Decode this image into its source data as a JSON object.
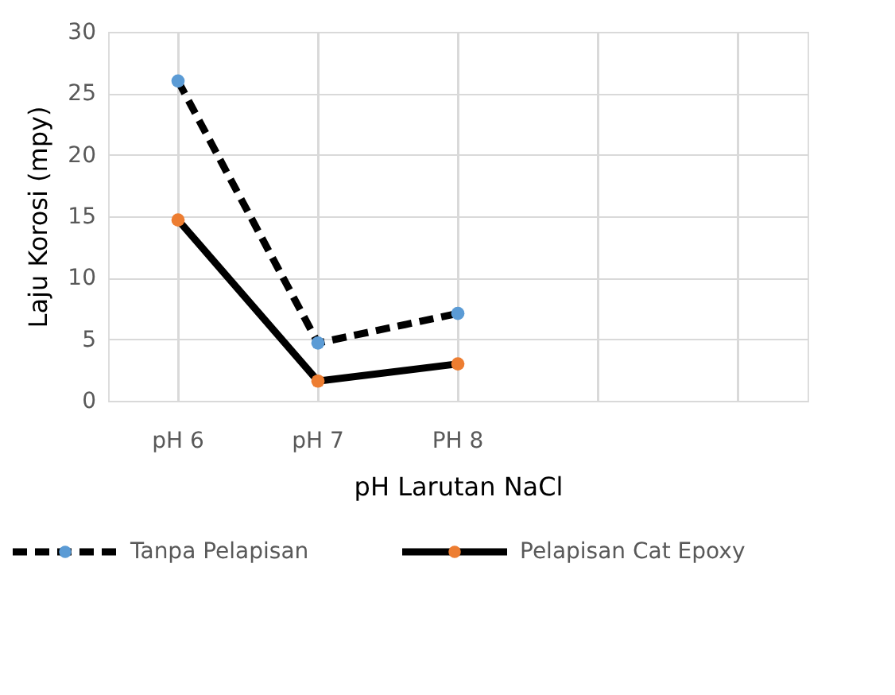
{
  "chart_data": {
    "type": "line",
    "xlabel": "pH Larutan NaCl",
    "ylabel": "Laju Korosi (mpy)",
    "categories": [
      "pH 6",
      "pH 7",
      "PH 8",
      null,
      null
    ],
    "series": [
      {
        "name": "Tanpa Pelapisan",
        "color": "#000000",
        "colors": [
          "#5b9bd5",
          "#5b9bd5",
          "#5b9bd5",
          null,
          null
        ],
        "line_style": "dashed",
        "marker": "circle",
        "values": [
          26,
          4.7,
          7.1,
          null,
          null
        ]
      },
      {
        "name": "Pelapisan Cat Epoxy",
        "color": "#000000",
        "colors": [
          "#ed7d31",
          "#ed7d31",
          "#ed7d31",
          null,
          null
        ],
        "line_style": "solid",
        "marker": "circle",
        "values": [
          14.7,
          1.6,
          3.0,
          null,
          null
        ]
      }
    ],
    "ylim": [
      0,
      30
    ],
    "yticks": [
      0,
      5,
      10,
      15,
      20,
      25,
      30
    ],
    "grid": true,
    "legend": "bottom"
  }
}
